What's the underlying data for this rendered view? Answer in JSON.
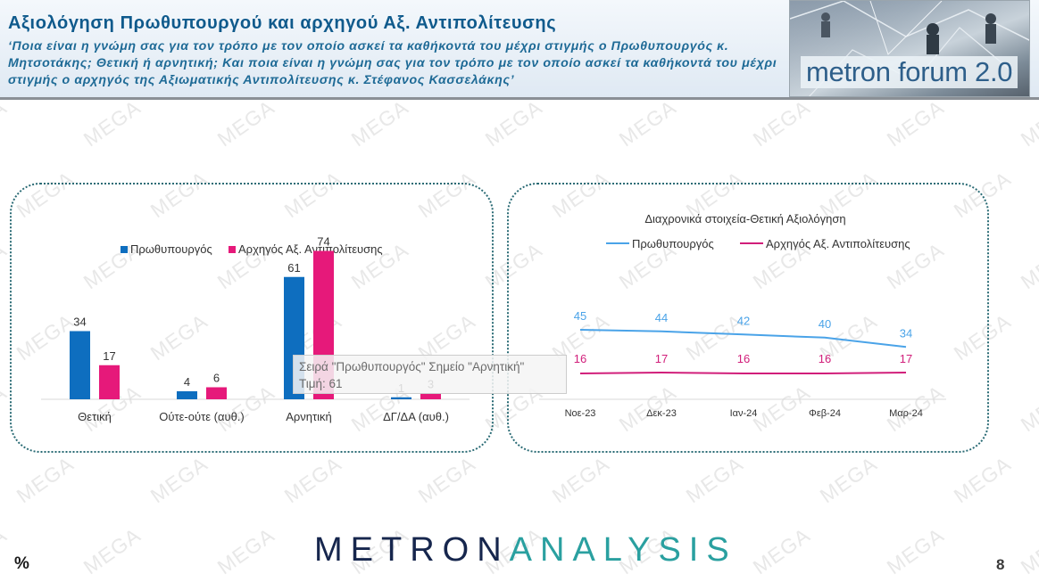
{
  "header": {
    "title": "Αξιολόγηση Πρωθυπουργού και αρχηγού Αξ. Αντιπολίτευσης",
    "question": "‘Ποια είναι η γνώμη σας για τον τρόπο με τον οποίο ασκεί τα καθήκοντά του μέχρι στιγμής ο Πρωθυπουργός κ. Μητσοτάκης; Θετική ή αρνητική; Και ποια είναι η γνώμη σας για τον τρόπο με τον οποίο ασκεί τα καθήκοντά του μέχρι στιγμής ο αρχηγός της Αξιωματικής Αντιπολίτευσης κ. Στέφανος Κασσελάκης’",
    "logo_text": "metron forum 2.0"
  },
  "watermark": "MEGA",
  "colors": {
    "pm_bar": "#0e6ebf",
    "opp_bar": "#e6197a",
    "pm_line": "#4aa3e8",
    "opp_line": "#d11e7a",
    "panel_border": "#2a6b75",
    "title": "#0f5a8c"
  },
  "tooltip": {
    "line1": "Σειρά \"Πρωθυπουργός\" Σημείο \"Αρνητική\"",
    "line2": "Τιμή: 61"
  },
  "chart_data": [
    {
      "type": "bar",
      "categories": [
        "Θετική",
        "Ούτε-ούτε (αυθ.)",
        "Αρνητική",
        "ΔΓ/ΔΑ (αυθ.)"
      ],
      "series": [
        {
          "name": "Πρωθυπουργός",
          "values": [
            34,
            4,
            61,
            1
          ],
          "color": "#0e6ebf"
        },
        {
          "name": "Αρχηγός Αξ. Αντιπολίτευσης",
          "values": [
            17,
            6,
            74,
            3
          ],
          "color": "#e6197a"
        }
      ],
      "legend_position": "top",
      "grid": false,
      "ylim": [
        0,
        80
      ]
    },
    {
      "type": "line",
      "title": "Διαχρονικά στοιχεία-Θετική Αξιολόγηση",
      "x": [
        "Νοε-23",
        "Δεκ-23",
        "Ιαν-24",
        "Φεβ-24",
        "Μαρ-24"
      ],
      "series": [
        {
          "name": "Πρωθυπουργός",
          "values": [
            45,
            44,
            42,
            40,
            34
          ],
          "color": "#4aa3e8"
        },
        {
          "name": "Αρχηγός Αξ. Αντιπολίτευσης",
          "values": [
            16,
            17,
            16,
            16,
            17
          ],
          "color": "#d11e7a"
        }
      ],
      "legend_position": "top",
      "grid": false
    }
  ],
  "footer": {
    "brand_part1": "METRON",
    "brand_part2": "ANALYSIS",
    "percent_label": "%",
    "page_number": "8"
  }
}
